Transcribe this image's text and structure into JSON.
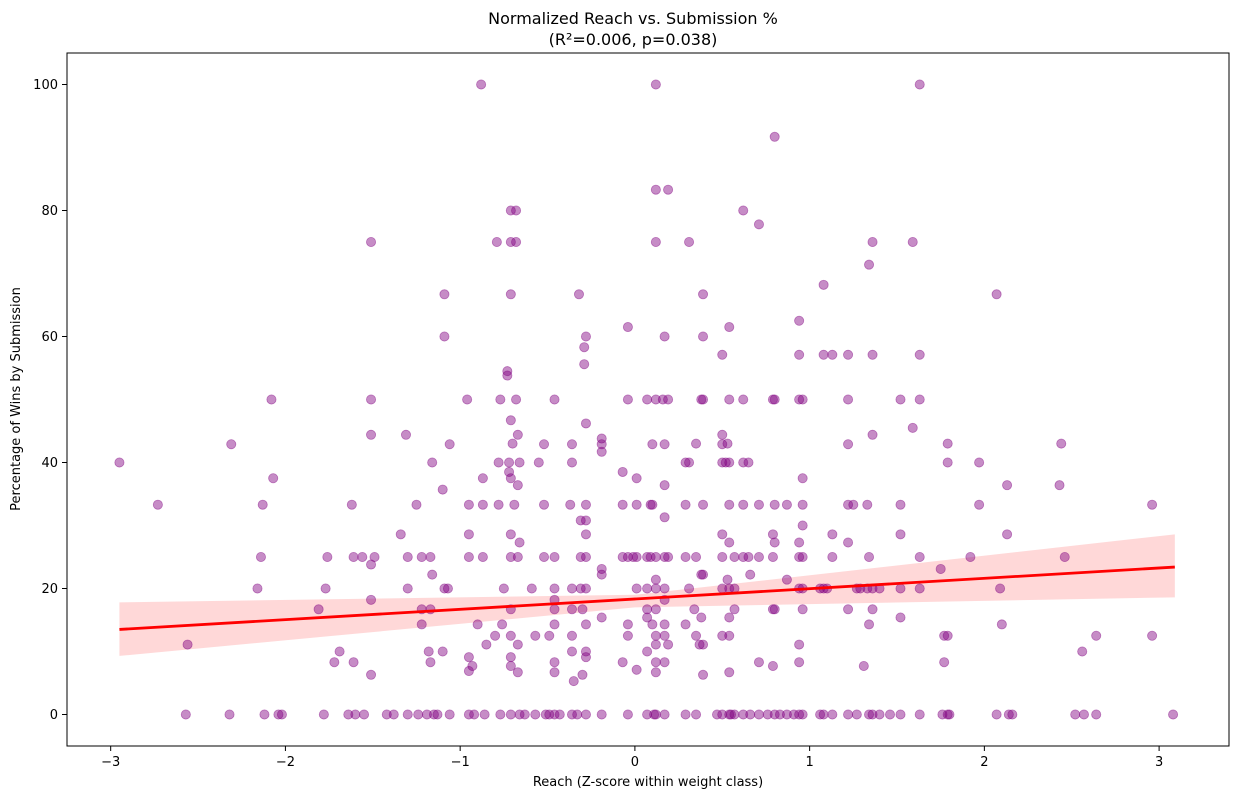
{
  "chart_data": {
    "type": "scatter",
    "title": "Normalized Reach vs. Submission %",
    "subtitle": "(R²=0.006, p=0.038)",
    "xlabel": "Reach (Z-score within weight class)",
    "ylabel": "Percentage of Wins by Submission",
    "xlim": [
      -3.25,
      3.4
    ],
    "ylim": [
      -5,
      105
    ],
    "xticks": [
      -3,
      -2,
      -1,
      0,
      1,
      2,
      3
    ],
    "xtick_labels": [
      "−3",
      "−2",
      "−1",
      "0",
      "1",
      "2",
      "3"
    ],
    "yticks": [
      0,
      20,
      40,
      60,
      80,
      100
    ],
    "ytick_labels": [
      "0",
      "20",
      "40",
      "60",
      "80",
      "100"
    ],
    "grid": false,
    "point_color": "#800080",
    "point_alpha": 0.45,
    "regression": {
      "color": "#ff0000",
      "ci_color": "#ffd6d6",
      "line": [
        [
          -2.95,
          13.5
        ],
        [
          3.09,
          23.4
        ]
      ],
      "ci_upper": [
        [
          -2.95,
          17.8
        ],
        [
          0.0,
          19.0
        ],
        [
          3.09,
          28.6
        ]
      ],
      "ci_lower": [
        [
          -2.95,
          9.3
        ],
        [
          0.0,
          17.0
        ],
        [
          3.09,
          18.6
        ]
      ]
    },
    "points": [
      [
        -2.95,
        40
      ],
      [
        -2.73,
        33.3
      ],
      [
        -2.56,
        11.1
      ],
      [
        -2.57,
        0
      ],
      [
        -2.32,
        0
      ],
      [
        -2.31,
        42.9
      ],
      [
        -2.16,
        20
      ],
      [
        -2.14,
        25
      ],
      [
        -2.13,
        33.3
      ],
      [
        -2.12,
        0
      ],
      [
        -2.08,
        50
      ],
      [
        -2.07,
        37.5
      ],
      [
        -2.04,
        0
      ],
      [
        -2.02,
        0
      ],
      [
        -1.81,
        16.7
      ],
      [
        -1.78,
        0
      ],
      [
        -1.77,
        20
      ],
      [
        -1.76,
        25
      ],
      [
        -1.72,
        8.3
      ],
      [
        -1.69,
        10
      ],
      [
        -1.64,
        0
      ],
      [
        -1.62,
        33.3
      ],
      [
        -1.61,
        25
      ],
      [
        -1.6,
        0
      ],
      [
        -1.61,
        8.3
      ],
      [
        -1.56,
        25
      ],
      [
        -1.55,
        0
      ],
      [
        -1.51,
        75
      ],
      [
        -1.51,
        50
      ],
      [
        -1.51,
        44.4
      ],
      [
        -1.51,
        23.8
      ],
      [
        -1.49,
        25
      ],
      [
        -1.51,
        18.2
      ],
      [
        -1.51,
        6.3
      ],
      [
        -1.42,
        0
      ],
      [
        -1.38,
        0
      ],
      [
        -1.34,
        28.6
      ],
      [
        -1.31,
        44.4
      ],
      [
        -1.3,
        25
      ],
      [
        -1.3,
        20
      ],
      [
        -1.3,
        0
      ],
      [
        -1.25,
        33.3
      ],
      [
        -1.24,
        0
      ],
      [
        -1.22,
        16.7
      ],
      [
        -1.22,
        25
      ],
      [
        -1.22,
        14.3
      ],
      [
        -1.19,
        0
      ],
      [
        -1.18,
        10
      ],
      [
        -1.17,
        25
      ],
      [
        -1.16,
        40
      ],
      [
        -1.16,
        22.2
      ],
      [
        -1.17,
        16.7
      ],
      [
        -1.17,
        8.3
      ],
      [
        -1.15,
        0
      ],
      [
        -1.13,
        0
      ],
      [
        -1.1,
        35.7
      ],
      [
        -1.09,
        66.7
      ],
      [
        -1.09,
        60
      ],
      [
        -1.09,
        20
      ],
      [
        -1.1,
        10
      ],
      [
        -1.07,
        20
      ],
      [
        -1.06,
        42.9
      ],
      [
        -1.06,
        0
      ],
      [
        -0.96,
        50
      ],
      [
        -0.95,
        33.3
      ],
      [
        -0.95,
        28.6
      ],
      [
        -0.95,
        25
      ],
      [
        -0.95,
        9.1
      ],
      [
        -0.95,
        6.9
      ],
      [
        -0.95,
        0
      ],
      [
        -0.93,
        7.7
      ],
      [
        -0.92,
        0
      ],
      [
        -0.9,
        14.3
      ],
      [
        -0.88,
        100
      ],
      [
        -0.87,
        37.5
      ],
      [
        -0.87,
        33.3
      ],
      [
        -0.87,
        25
      ],
      [
        -0.86,
        0
      ],
      [
        -0.85,
        11.1
      ],
      [
        -0.8,
        12.5
      ],
      [
        -0.79,
        75
      ],
      [
        -0.78,
        40
      ],
      [
        -0.78,
        33.3
      ],
      [
        -0.77,
        50
      ],
      [
        -0.77,
        0
      ],
      [
        -0.76,
        14.3
      ],
      [
        -0.75,
        20
      ],
      [
        -0.73,
        54.5
      ],
      [
        -0.73,
        53.8
      ],
      [
        -0.72,
        40
      ],
      [
        -0.72,
        38.5
      ],
      [
        -0.71,
        80
      ],
      [
        -0.71,
        75
      ],
      [
        -0.71,
        66.7
      ],
      [
        -0.71,
        46.7
      ],
      [
        -0.71,
        37.5
      ],
      [
        -0.71,
        28.6
      ],
      [
        -0.71,
        25
      ],
      [
        -0.71,
        16.7
      ],
      [
        -0.71,
        12.5
      ],
      [
        -0.71,
        9.1
      ],
      [
        -0.71,
        7.7
      ],
      [
        -0.71,
        0
      ],
      [
        -0.7,
        43
      ],
      [
        -0.69,
        33.3
      ],
      [
        -0.68,
        80
      ],
      [
        -0.68,
        75
      ],
      [
        -0.68,
        50
      ],
      [
        -0.67,
        44.4
      ],
      [
        -0.67,
        36.4
      ],
      [
        -0.67,
        25
      ],
      [
        -0.67,
        11.1
      ],
      [
        -0.67,
        6.7
      ],
      [
        -0.66,
        40
      ],
      [
        -0.66,
        27.3
      ],
      [
        -0.66,
        0
      ],
      [
        -0.63,
        0
      ],
      [
        -0.59,
        20
      ],
      [
        -0.57,
        12.5
      ],
      [
        -0.57,
        0
      ],
      [
        -0.55,
        40
      ],
      [
        -0.52,
        42.9
      ],
      [
        -0.52,
        33.3
      ],
      [
        -0.52,
        25
      ],
      [
        -0.51,
        0
      ],
      [
        -0.49,
        12.5
      ],
      [
        -0.49,
        0
      ],
      [
        -0.46,
        50
      ],
      [
        -0.46,
        25
      ],
      [
        -0.46,
        20
      ],
      [
        -0.46,
        18.2
      ],
      [
        -0.46,
        16.7
      ],
      [
        -0.46,
        14.3
      ],
      [
        -0.46,
        8.3
      ],
      [
        -0.46,
        6.7
      ],
      [
        -0.46,
        0
      ],
      [
        -0.43,
        0
      ],
      [
        -0.37,
        33.3
      ],
      [
        -0.36,
        42.9
      ],
      [
        -0.36,
        40
      ],
      [
        -0.36,
        20
      ],
      [
        -0.36,
        16.7
      ],
      [
        -0.36,
        12.5
      ],
      [
        -0.36,
        10
      ],
      [
        -0.36,
        0
      ],
      [
        -0.35,
        5.3
      ],
      [
        -0.33,
        0
      ],
      [
        -0.32,
        66.7
      ],
      [
        -0.31,
        30.8
      ],
      [
        -0.31,
        25
      ],
      [
        -0.31,
        20
      ],
      [
        -0.3,
        16.7
      ],
      [
        -0.3,
        6.3
      ],
      [
        -0.29,
        58.3
      ],
      [
        -0.29,
        55.6
      ],
      [
        -0.28,
        60
      ],
      [
        -0.28,
        46.2
      ],
      [
        -0.28,
        33.3
      ],
      [
        -0.28,
        28.6
      ],
      [
        -0.28,
        30.8
      ],
      [
        -0.28,
        25
      ],
      [
        -0.28,
        20
      ],
      [
        -0.28,
        14.3
      ],
      [
        -0.28,
        10
      ],
      [
        -0.28,
        9.1
      ],
      [
        -0.28,
        0
      ],
      [
        -0.19,
        43.8
      ],
      [
        -0.19,
        42.9
      ],
      [
        -0.19,
        41.7
      ],
      [
        -0.19,
        23.1
      ],
      [
        -0.19,
        22.2
      ],
      [
        -0.19,
        15.4
      ],
      [
        -0.19,
        0
      ],
      [
        -0.07,
        38.5
      ],
      [
        -0.07,
        33.3
      ],
      [
        -0.07,
        25
      ],
      [
        -0.07,
        8.3
      ],
      [
        -0.04,
        61.5
      ],
      [
        -0.04,
        50
      ],
      [
        -0.04,
        25
      ],
      [
        -0.04,
        14.3
      ],
      [
        -0.04,
        12.5
      ],
      [
        -0.04,
        0
      ],
      [
        -0.01,
        25
      ],
      [
        0.01,
        37.5
      ],
      [
        0.01,
        33.3
      ],
      [
        0.01,
        25
      ],
      [
        0.01,
        20
      ],
      [
        0.01,
        7.1
      ],
      [
        0.07,
        50
      ],
      [
        0.07,
        25
      ],
      [
        0.07,
        20
      ],
      [
        0.07,
        16.7
      ],
      [
        0.07,
        15.4
      ],
      [
        0.07,
        10
      ],
      [
        0.07,
        0
      ],
      [
        0.09,
        33.3
      ],
      [
        0.09,
        25
      ],
      [
        0.1,
        42.9
      ],
      [
        0.1,
        33.3
      ],
      [
        0.1,
        14.3
      ],
      [
        0.11,
        0
      ],
      [
        0.12,
        100
      ],
      [
        0.12,
        83.3
      ],
      [
        0.12,
        75
      ],
      [
        0.12,
        50
      ],
      [
        0.12,
        25
      ],
      [
        0.12,
        21.4
      ],
      [
        0.12,
        20
      ],
      [
        0.12,
        16.7
      ],
      [
        0.12,
        12.5
      ],
      [
        0.12,
        11.1
      ],
      [
        0.12,
        8.3
      ],
      [
        0.12,
        6.7
      ],
      [
        0.12,
        0
      ],
      [
        0.16,
        50
      ],
      [
        0.17,
        60
      ],
      [
        0.17,
        42.9
      ],
      [
        0.17,
        36.4
      ],
      [
        0.17,
        31.3
      ],
      [
        0.17,
        25
      ],
      [
        0.17,
        20
      ],
      [
        0.17,
        18.2
      ],
      [
        0.17,
        14.3
      ],
      [
        0.17,
        12.5
      ],
      [
        0.17,
        8.3
      ],
      [
        0.17,
        0
      ],
      [
        0.19,
        83.3
      ],
      [
        0.19,
        50
      ],
      [
        0.19,
        25
      ],
      [
        0.19,
        11.1
      ],
      [
        0.29,
        40
      ],
      [
        0.29,
        33.3
      ],
      [
        0.29,
        25
      ],
      [
        0.29,
        14.3
      ],
      [
        0.29,
        0
      ],
      [
        0.31,
        75
      ],
      [
        0.31,
        40
      ],
      [
        0.31,
        20
      ],
      [
        0.34,
        16.7
      ],
      [
        0.35,
        12.5
      ],
      [
        0.35,
        43
      ],
      [
        0.35,
        25
      ],
      [
        0.35,
        0
      ],
      [
        0.37,
        11.1
      ],
      [
        0.38,
        50
      ],
      [
        0.38,
        22.2
      ],
      [
        0.38,
        15.4
      ],
      [
        0.39,
        66.7
      ],
      [
        0.39,
        60
      ],
      [
        0.39,
        50
      ],
      [
        0.39,
        33.3
      ],
      [
        0.39,
        22.2
      ],
      [
        0.39,
        11.1
      ],
      [
        0.39,
        6.3
      ],
      [
        0.47,
        0
      ],
      [
        0.5,
        57.1
      ],
      [
        0.5,
        44.4
      ],
      [
        0.5,
        42.9
      ],
      [
        0.5,
        40
      ],
      [
        0.5,
        28.6
      ],
      [
        0.5,
        25
      ],
      [
        0.5,
        20
      ],
      [
        0.5,
        12.5
      ],
      [
        0.5,
        0
      ],
      [
        0.52,
        40
      ],
      [
        0.53,
        43
      ],
      [
        0.53,
        21.4
      ],
      [
        0.54,
        61.5
      ],
      [
        0.54,
        50
      ],
      [
        0.54,
        40
      ],
      [
        0.54,
        33.3
      ],
      [
        0.54,
        27.3
      ],
      [
        0.54,
        20
      ],
      [
        0.54,
        15.4
      ],
      [
        0.54,
        12.5
      ],
      [
        0.54,
        6.7
      ],
      [
        0.54,
        0
      ],
      [
        0.55,
        0
      ],
      [
        0.57,
        25
      ],
      [
        0.57,
        20
      ],
      [
        0.57,
        16.7
      ],
      [
        0.57,
        0
      ],
      [
        0.62,
        80
      ],
      [
        0.62,
        50
      ],
      [
        0.62,
        40
      ],
      [
        0.62,
        33.3
      ],
      [
        0.62,
        25
      ],
      [
        0.62,
        0
      ],
      [
        0.65,
        40
      ],
      [
        0.65,
        25
      ],
      [
        0.66,
        22.2
      ],
      [
        0.66,
        0
      ],
      [
        0.71,
        77.8
      ],
      [
        0.71,
        33.3
      ],
      [
        0.71,
        25
      ],
      [
        0.71,
        8.3
      ],
      [
        0.71,
        0
      ],
      [
        0.76,
        0
      ],
      [
        0.8,
        91.7
      ],
      [
        0.79,
        50
      ],
      [
        0.79,
        28.6
      ],
      [
        0.79,
        25
      ],
      [
        0.79,
        16.7
      ],
      [
        0.79,
        7.7
      ],
      [
        0.8,
        50
      ],
      [
        0.8,
        33.3
      ],
      [
        0.8,
        27.3
      ],
      [
        0.8,
        16.7
      ],
      [
        0.8,
        0
      ],
      [
        0.83,
        0
      ],
      [
        0.87,
        21.4
      ],
      [
        0.87,
        33.3
      ],
      [
        0.87,
        0
      ],
      [
        0.91,
        0
      ],
      [
        0.94,
        62.5
      ],
      [
        0.94,
        57.1
      ],
      [
        0.94,
        50
      ],
      [
        0.94,
        27.3
      ],
      [
        0.94,
        25
      ],
      [
        0.94,
        20
      ],
      [
        0.94,
        11.1
      ],
      [
        0.94,
        8.3
      ],
      [
        0.94,
        0
      ],
      [
        0.96,
        50
      ],
      [
        0.96,
        37.5
      ],
      [
        0.96,
        33.3
      ],
      [
        0.96,
        30
      ],
      [
        0.96,
        25
      ],
      [
        0.96,
        20
      ],
      [
        0.96,
        16.7
      ],
      [
        0.96,
        0
      ],
      [
        1.08,
        68.2
      ],
      [
        1.08,
        57.1
      ],
      [
        1.08,
        20
      ],
      [
        1.08,
        0
      ],
      [
        1.06,
        20
      ],
      [
        1.06,
        0
      ],
      [
        1.1,
        20
      ],
      [
        1.13,
        57.1
      ],
      [
        1.13,
        28.6
      ],
      [
        1.13,
        25
      ],
      [
        1.13,
        0
      ],
      [
        1.22,
        57.1
      ],
      [
        1.22,
        50
      ],
      [
        1.22,
        42.9
      ],
      [
        1.22,
        33.3
      ],
      [
        1.22,
        27.3
      ],
      [
        1.22,
        16.7
      ],
      [
        1.22,
        0
      ],
      [
        1.25,
        33.3
      ],
      [
        1.27,
        20
      ],
      [
        1.27,
        0
      ],
      [
        1.29,
        20
      ],
      [
        1.31,
        7.7
      ],
      [
        1.33,
        20
      ],
      [
        1.33,
        33.3
      ],
      [
        1.34,
        71.4
      ],
      [
        1.34,
        25
      ],
      [
        1.34,
        14.3
      ],
      [
        1.34,
        0
      ],
      [
        1.36,
        75
      ],
      [
        1.36,
        57.1
      ],
      [
        1.36,
        44.4
      ],
      [
        1.36,
        20
      ],
      [
        1.36,
        16.7
      ],
      [
        1.36,
        0
      ],
      [
        1.4,
        20
      ],
      [
        1.4,
        0
      ],
      [
        1.46,
        0
      ],
      [
        1.52,
        50
      ],
      [
        1.52,
        33.3
      ],
      [
        1.52,
        28.6
      ],
      [
        1.52,
        20
      ],
      [
        1.52,
        15.4
      ],
      [
        1.52,
        0
      ],
      [
        1.59,
        75
      ],
      [
        1.59,
        45.5
      ],
      [
        1.63,
        100
      ],
      [
        1.63,
        57.1
      ],
      [
        1.63,
        50
      ],
      [
        1.63,
        25
      ],
      [
        1.63,
        20
      ],
      [
        1.63,
        0
      ],
      [
        1.75,
        23.1
      ],
      [
        1.76,
        0
      ],
      [
        1.77,
        12.5
      ],
      [
        1.77,
        8.3
      ],
      [
        1.79,
        43
      ],
      [
        1.79,
        40
      ],
      [
        1.79,
        12.5
      ],
      [
        1.79,
        0
      ],
      [
        1.8,
        0
      ],
      [
        1.97,
        40
      ],
      [
        1.97,
        33.3
      ],
      [
        1.92,
        25
      ],
      [
        2.07,
        66.7
      ],
      [
        2.07,
        0
      ],
      [
        2.09,
        20
      ],
      [
        2.1,
        14.3
      ],
      [
        2.13,
        36.4
      ],
      [
        2.13,
        28.6
      ],
      [
        2.14,
        0
      ],
      [
        2.16,
        0
      ],
      [
        2.44,
        43
      ],
      [
        2.43,
        36.4
      ],
      [
        2.46,
        25
      ],
      [
        2.52,
        0
      ],
      [
        2.56,
        10
      ],
      [
        2.57,
        0
      ],
      [
        2.64,
        12.5
      ],
      [
        2.64,
        0
      ],
      [
        2.96,
        33.3
      ],
      [
        2.96,
        12.5
      ],
      [
        3.08,
        0
      ]
    ]
  }
}
